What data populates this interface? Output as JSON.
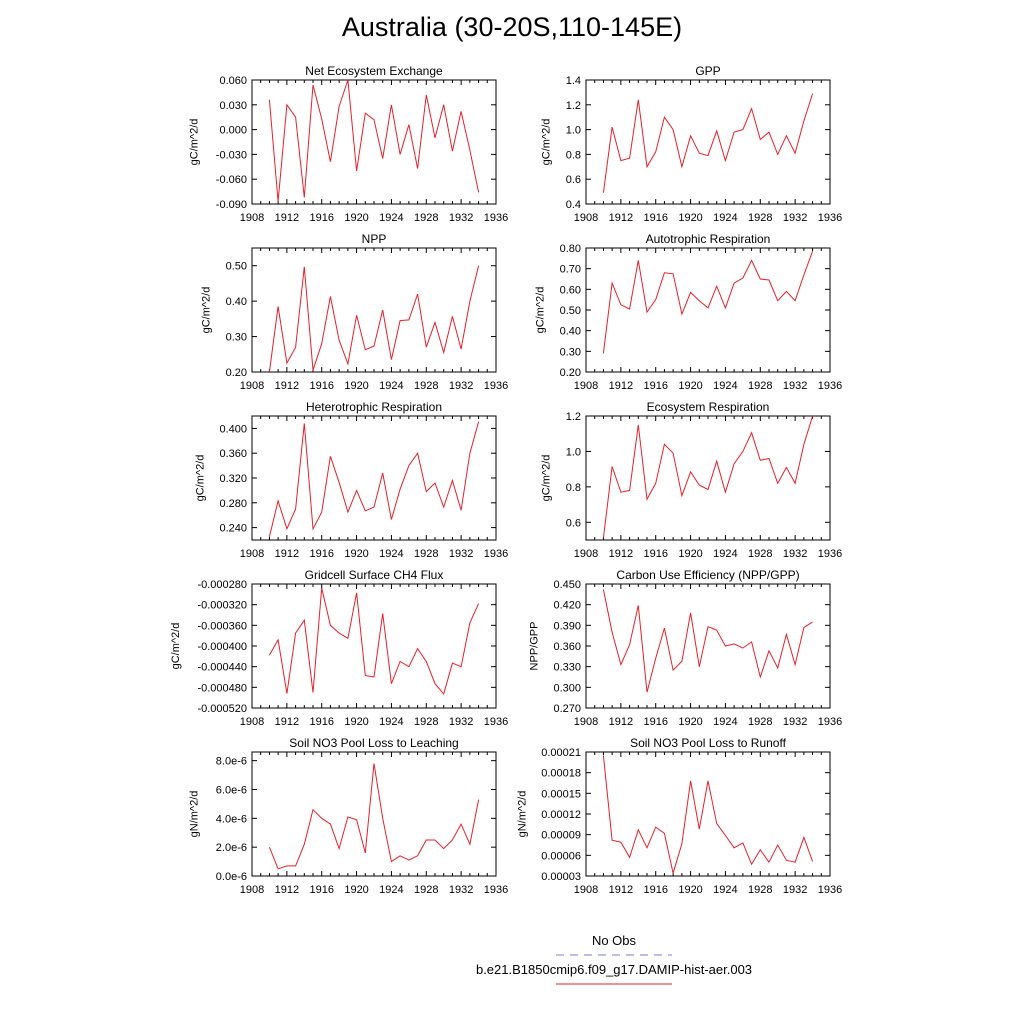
{
  "title": "Australia (30-20S,110-145E)",
  "legend": {
    "obs_label": "No Obs",
    "obs_color": "#7b7bd6",
    "model_label": "b.e21.B1850cmip6.f09_g17.DAMIP-hist-aer.003",
    "model_color": "#e8202a"
  },
  "chart_data": [
    {
      "type": "line",
      "title": "Net Ecosystem Exchange",
      "xlabel": "",
      "ylabel": "gC/m^2/d",
      "xlim": [
        1908,
        1936
      ],
      "ylim": [
        -0.09,
        0.06
      ],
      "xticks": [
        1908,
        1912,
        1916,
        1920,
        1924,
        1928,
        1932,
        1936
      ],
      "yticks": [
        "-0.090",
        "-0.060",
        "-0.030",
        "0.000",
        "0.030",
        "0.060"
      ],
      "ytick_values": [
        -0.09,
        -0.06,
        -0.03,
        0.0,
        0.03,
        0.06
      ],
      "x": [
        1910,
        1911,
        1912,
        1913,
        1914,
        1915,
        1916,
        1917,
        1918,
        1919,
        1920,
        1921,
        1922,
        1923,
        1924,
        1925,
        1926,
        1927,
        1928,
        1929,
        1930,
        1931,
        1932,
        1933,
        1934
      ],
      "y": [
        0.036,
        -0.087,
        0.03,
        0.015,
        -0.082,
        0.054,
        0.013,
        -0.039,
        0.028,
        0.06,
        -0.05,
        0.02,
        0.012,
        -0.035,
        0.03,
        -0.03,
        0.006,
        -0.047,
        0.042,
        -0.01,
        0.03,
        -0.026,
        0.022,
        -0.025,
        -0.076
      ]
    },
    {
      "type": "line",
      "title": "GPP",
      "xlabel": "",
      "ylabel": "gC/m^2/d",
      "xlim": [
        1908,
        1936
      ],
      "ylim": [
        0.4,
        1.4
      ],
      "xticks": [
        1908,
        1912,
        1916,
        1920,
        1924,
        1928,
        1932,
        1936
      ],
      "yticks": [
        "0.4",
        "0.6",
        "0.8",
        "1.0",
        "1.2",
        "1.4"
      ],
      "ytick_values": [
        0.4,
        0.6,
        0.8,
        1.0,
        1.2,
        1.4
      ],
      "x": [
        1910,
        1911,
        1912,
        1913,
        1914,
        1915,
        1916,
        1917,
        1918,
        1919,
        1920,
        1921,
        1922,
        1923,
        1924,
        1925,
        1926,
        1927,
        1928,
        1929,
        1930,
        1931,
        1932,
        1933,
        1934
      ],
      "y": [
        0.49,
        1.02,
        0.75,
        0.77,
        1.24,
        0.7,
        0.82,
        1.1,
        1.0,
        0.7,
        0.95,
        0.81,
        0.79,
        0.99,
        0.75,
        0.98,
        1.0,
        1.17,
        0.92,
        0.98,
        0.8,
        0.95,
        0.81,
        1.07,
        1.29
      ]
    },
    {
      "type": "line",
      "title": "NPP",
      "xlabel": "",
      "ylabel": "gC/m^2/d",
      "xlim": [
        1908,
        1936
      ],
      "ylim": [
        0.2,
        0.55
      ],
      "xticks": [
        1908,
        1912,
        1916,
        1920,
        1924,
        1928,
        1932,
        1936
      ],
      "yticks": [
        "0.20",
        "0.30",
        "0.40",
        "0.50"
      ],
      "ytick_values": [
        0.2,
        0.3,
        0.4,
        0.5
      ],
      "x": [
        1910,
        1911,
        1912,
        1913,
        1914,
        1915,
        1916,
        1917,
        1918,
        1919,
        1920,
        1921,
        1922,
        1923,
        1924,
        1925,
        1926,
        1927,
        1928,
        1929,
        1930,
        1931,
        1932,
        1933,
        1934
      ],
      "y": [
        0.2,
        0.385,
        0.225,
        0.27,
        0.497,
        0.205,
        0.28,
        0.413,
        0.29,
        0.223,
        0.36,
        0.263,
        0.273,
        0.375,
        0.235,
        0.345,
        0.347,
        0.42,
        0.27,
        0.34,
        0.255,
        0.357,
        0.265,
        0.4,
        0.5
      ]
    },
    {
      "type": "line",
      "title": "Autotrophic Respiration",
      "xlabel": "",
      "ylabel": "gC/m^2/d",
      "xlim": [
        1908,
        1936
      ],
      "ylim": [
        0.2,
        0.8
      ],
      "xticks": [
        1908,
        1912,
        1916,
        1920,
        1924,
        1928,
        1932,
        1936
      ],
      "yticks": [
        "0.20",
        "0.30",
        "0.40",
        "0.50",
        "0.60",
        "0.70",
        "0.80"
      ],
      "ytick_values": [
        0.2,
        0.3,
        0.4,
        0.5,
        0.6,
        0.7,
        0.8
      ],
      "x": [
        1910,
        1911,
        1912,
        1913,
        1914,
        1915,
        1916,
        1917,
        1918,
        1919,
        1920,
        1921,
        1922,
        1923,
        1924,
        1925,
        1926,
        1927,
        1928,
        1929,
        1930,
        1931,
        1932,
        1933,
        1934
      ],
      "y": [
        0.29,
        0.63,
        0.525,
        0.505,
        0.74,
        0.49,
        0.55,
        0.68,
        0.675,
        0.48,
        0.585,
        0.545,
        0.51,
        0.615,
        0.51,
        0.63,
        0.655,
        0.74,
        0.65,
        0.645,
        0.545,
        0.59,
        0.545,
        0.67,
        0.785
      ]
    },
    {
      "type": "line",
      "title": "Heterotrophic Respiration",
      "xlabel": "",
      "ylabel": "gC/m^2/d",
      "xlim": [
        1908,
        1936
      ],
      "ylim": [
        0.22,
        0.42
      ],
      "xticks": [
        1908,
        1912,
        1916,
        1920,
        1924,
        1928,
        1932,
        1936
      ],
      "yticks": [
        "0.240",
        "0.280",
        "0.320",
        "0.360",
        "0.400"
      ],
      "ytick_values": [
        0.24,
        0.28,
        0.32,
        0.36,
        0.4
      ],
      "x": [
        1910,
        1911,
        1912,
        1913,
        1914,
        1915,
        1916,
        1917,
        1918,
        1919,
        1920,
        1921,
        1922,
        1923,
        1924,
        1925,
        1926,
        1927,
        1928,
        1929,
        1930,
        1931,
        1932,
        1933,
        1934
      ],
      "y": [
        0.225,
        0.283,
        0.238,
        0.27,
        0.408,
        0.238,
        0.265,
        0.355,
        0.313,
        0.265,
        0.3,
        0.267,
        0.273,
        0.328,
        0.253,
        0.302,
        0.34,
        0.36,
        0.298,
        0.312,
        0.273,
        0.316,
        0.268,
        0.36,
        0.411
      ]
    },
    {
      "type": "line",
      "title": "Ecosystem Respiration",
      "xlabel": "",
      "ylabel": "gC/m^2/d",
      "xlim": [
        1908,
        1936
      ],
      "ylim": [
        0.5,
        1.2
      ],
      "xticks": [
        1908,
        1912,
        1916,
        1920,
        1924,
        1928,
        1932,
        1936
      ],
      "yticks": [
        "0.6",
        "0.8",
        "1.0",
        "1.2"
      ],
      "ytick_values": [
        0.6,
        0.8,
        1.0,
        1.2
      ],
      "x": [
        1910,
        1911,
        1912,
        1913,
        1914,
        1915,
        1916,
        1917,
        1918,
        1919,
        1920,
        1921,
        1922,
        1923,
        1924,
        1925,
        1926,
        1927,
        1928,
        1929,
        1930,
        1931,
        1932,
        1933,
        1934
      ],
      "y": [
        0.51,
        0.915,
        0.77,
        0.78,
        1.15,
        0.73,
        0.82,
        1.04,
        0.99,
        0.75,
        0.885,
        0.81,
        0.785,
        0.945,
        0.77,
        0.93,
        1.0,
        1.105,
        0.95,
        0.96,
        0.82,
        0.91,
        0.82,
        1.04,
        1.2
      ]
    },
    {
      "type": "line",
      "title": "Gridcell Surface CH4 Flux",
      "xlabel": "",
      "ylabel": "gC/m^2/d",
      "xlim": [
        1908,
        1936
      ],
      "ylim": [
        -0.00052,
        -0.00028
      ],
      "xticks": [
        1908,
        1912,
        1916,
        1920,
        1924,
        1928,
        1932,
        1936
      ],
      "yticks": [
        "-0.000520",
        "-0.000480",
        "-0.000440",
        "-0.000400",
        "-0.000360",
        "-0.000320",
        "-0.000280"
      ],
      "ytick_values": [
        -0.00052,
        -0.00048,
        -0.00044,
        -0.0004,
        -0.00036,
        -0.00032,
        -0.00028
      ],
      "x": [
        1910,
        1911,
        1912,
        1913,
        1914,
        1915,
        1916,
        1917,
        1918,
        1919,
        1920,
        1921,
        1922,
        1923,
        1924,
        1925,
        1926,
        1927,
        1928,
        1929,
        1930,
        1931,
        1932,
        1933,
        1934
      ],
      "y": [
        -0.000418,
        -0.000388,
        -0.000492,
        -0.000375,
        -0.00035,
        -0.00049,
        -0.000288,
        -0.00036,
        -0.000375,
        -0.000385,
        -0.000297,
        -0.000457,
        -0.00046,
        -0.000337,
        -0.000473,
        -0.00043,
        -0.00044,
        -0.000405,
        -0.00043,
        -0.000473,
        -0.000493,
        -0.000433,
        -0.00044,
        -0.000355,
        -0.000318
      ]
    },
    {
      "type": "line",
      "title": "Carbon Use Efficiency (NPP/GPP)",
      "xlabel": "",
      "ylabel": "NPP/GPP",
      "xlim": [
        1908,
        1936
      ],
      "ylim": [
        0.27,
        0.45
      ],
      "xticks": [
        1908,
        1912,
        1916,
        1920,
        1924,
        1928,
        1932,
        1936
      ],
      "yticks": [
        "0.270",
        "0.300",
        "0.330",
        "0.360",
        "0.390",
        "0.420",
        "0.450"
      ],
      "ytick_values": [
        0.27,
        0.3,
        0.33,
        0.36,
        0.39,
        0.42,
        0.45
      ],
      "x": [
        1910,
        1911,
        1912,
        1913,
        1914,
        1915,
        1916,
        1917,
        1918,
        1919,
        1920,
        1921,
        1922,
        1923,
        1924,
        1925,
        1926,
        1927,
        1928,
        1929,
        1930,
        1931,
        1932,
        1933,
        1934
      ],
      "y": [
        0.442,
        0.38,
        0.333,
        0.362,
        0.419,
        0.293,
        0.342,
        0.386,
        0.325,
        0.338,
        0.408,
        0.33,
        0.388,
        0.383,
        0.36,
        0.363,
        0.357,
        0.366,
        0.315,
        0.353,
        0.328,
        0.377,
        0.333,
        0.387,
        0.395
      ]
    },
    {
      "type": "line",
      "title": "Soil NO3 Pool Loss to Leaching",
      "xlabel": "",
      "ylabel": "gN/m^2/d",
      "xlim": [
        1908,
        1936
      ],
      "ylim": [
        0.0,
        8.6e-06
      ],
      "xticks": [
        1908,
        1912,
        1916,
        1920,
        1924,
        1928,
        1932,
        1936
      ],
      "yticks": [
        "0.0e-6",
        "2.0e-6",
        "4.0e-6",
        "6.0e-6",
        "8.0e-6"
      ],
      "ytick_values": [
        0.0,
        2e-06,
        4e-06,
        6e-06,
        8e-06
      ],
      "x": [
        1910,
        1911,
        1912,
        1913,
        1914,
        1915,
        1916,
        1917,
        1918,
        1919,
        1920,
        1921,
        1922,
        1923,
        1924,
        1925,
        1926,
        1927,
        1928,
        1929,
        1930,
        1931,
        1932,
        1933,
        1934
      ],
      "y": [
        2e-06,
        5e-07,
        7e-07,
        7e-07,
        2.2e-06,
        4.6e-06,
        4e-06,
        3.6e-06,
        1.9e-06,
        4.1e-06,
        3.9e-06,
        1.6e-06,
        7.8e-06,
        4e-06,
        1e-06,
        1.4e-06,
        1.1e-06,
        1.4e-06,
        2.5e-06,
        2.5e-06,
        1.9e-06,
        2.5e-06,
        3.6e-06,
        2.2e-06,
        5.3e-06
      ]
    },
    {
      "type": "line",
      "title": "Soil NO3 Pool Loss to Runoff",
      "xlabel": "",
      "ylabel": "gN/m^2/d",
      "xlim": [
        1908,
        1936
      ],
      "ylim": [
        3e-05,
        0.00021
      ],
      "xticks": [
        1908,
        1912,
        1916,
        1920,
        1924,
        1928,
        1932,
        1936
      ],
      "yticks": [
        "0.00003",
        "0.00006",
        "0.00009",
        "0.00012",
        "0.00015",
        "0.00018",
        "0.00021"
      ],
      "ytick_values": [
        3e-05,
        6e-05,
        9e-05,
        0.00012,
        0.00015,
        0.00018,
        0.00021
      ],
      "x": [
        1910,
        1911,
        1912,
        1913,
        1914,
        1915,
        1916,
        1917,
        1918,
        1919,
        1920,
        1921,
        1922,
        1923,
        1924,
        1925,
        1926,
        1927,
        1928,
        1929,
        1930,
        1931,
        1932,
        1933,
        1934
      ],
      "y": [
        0.000205,
        8.2e-05,
        7.9e-05,
        5.7e-05,
        9.7e-05,
        7.1e-05,
        0.000101,
        9.2e-05,
        3.4e-05,
        7.7e-05,
        0.000168,
        9.8e-05,
        0.000168,
        0.000106,
        8.9e-05,
        7.1e-05,
        7.8e-05,
        4.7e-05,
        6.8e-05,
        5e-05,
        7.5e-05,
        5.3e-05,
        5e-05,
        8.6e-05,
        5.1e-05
      ]
    }
  ]
}
